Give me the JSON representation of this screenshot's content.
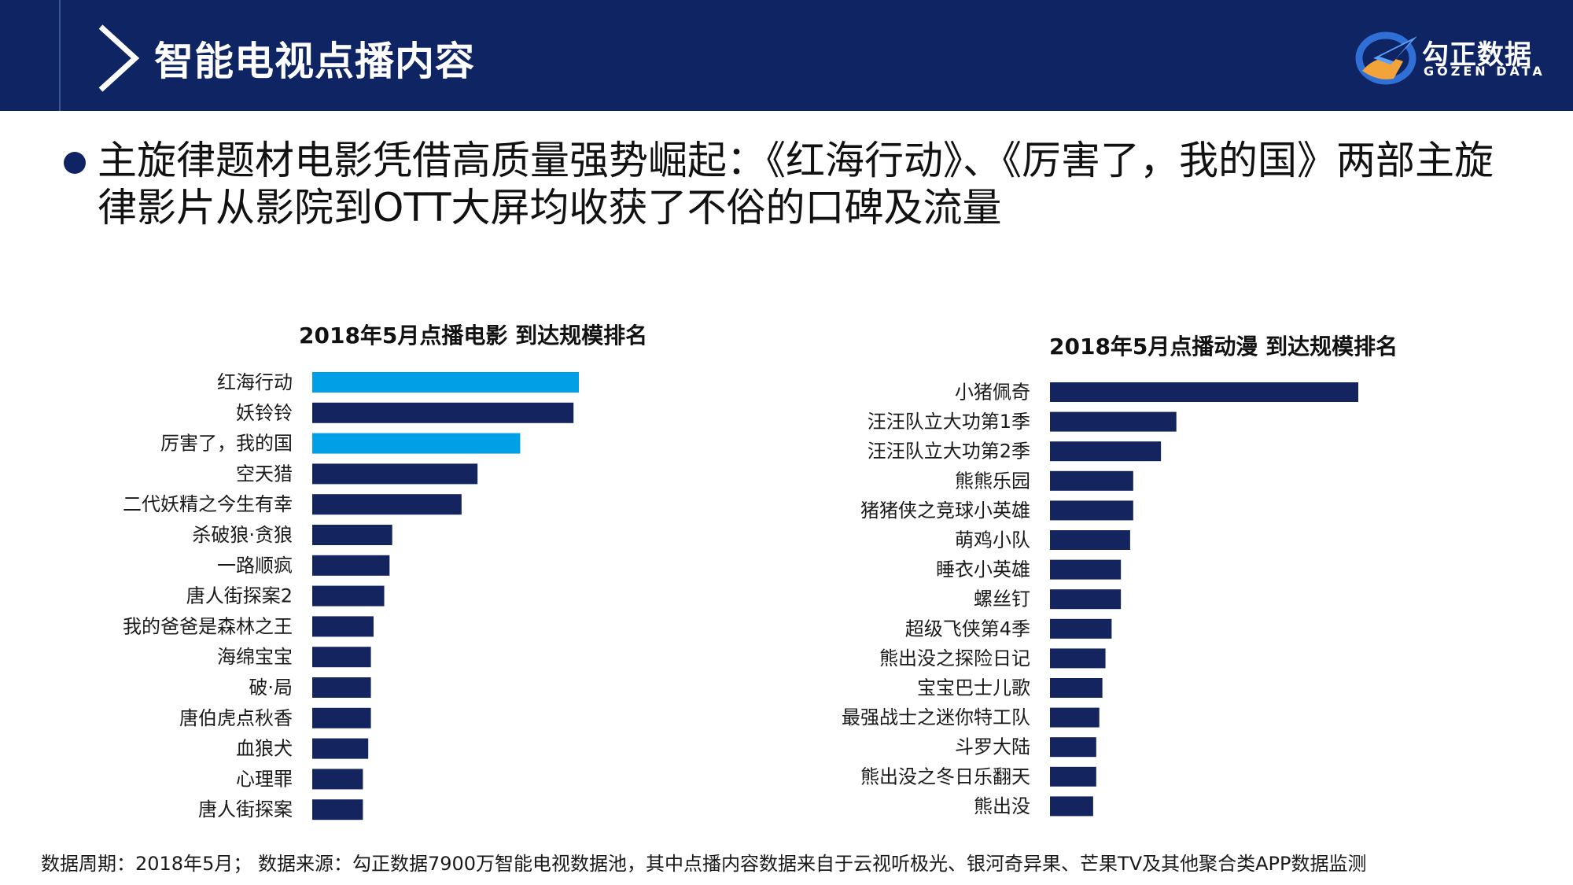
{
  "header": {
    "title": "智能电视点播内容",
    "logo_cn": "勾正数据",
    "logo_en": "GOZEN DATA"
  },
  "headline": "主旋律题材电影凭借高质量强势崛起：《红海行动》、《厉害了，我的国》两部主旋律影片从影院到OTT大屏均收获了不俗的口碑及流量",
  "colors": {
    "navy": "#13245e",
    "highlight": "#00a0e6",
    "header_bg": "#0e2463"
  },
  "chart_data": [
    {
      "type": "bar",
      "orientation": "horizontal",
      "title": "2018年5月点播电影 到达规模排名",
      "categories": [
        "红海行动",
        "妖铃铃",
        "厉害了，我的国",
        "空天猎",
        "二代妖精之今生有幸",
        "杀破狼·贪狼",
        "一路顺疯",
        "唐人街探案2",
        "我的爸爸是森林之王",
        "海绵宝宝",
        "破·局",
        "唐伯虎点秋香",
        "血狼犬",
        "心理罪",
        "唐人街探案"
      ],
      "values": [
        100,
        98,
        78,
        62,
        56,
        30,
        29,
        27,
        23,
        22,
        22,
        22,
        21,
        19,
        19
      ],
      "highlighted": [
        true,
        false,
        true,
        false,
        false,
        false,
        false,
        false,
        false,
        false,
        false,
        false,
        false,
        false,
        false
      ],
      "xlim": [
        0,
        100
      ],
      "unit": "relative"
    },
    {
      "type": "bar",
      "orientation": "horizontal",
      "title": "2018年5月点播动漫 到达规模排名",
      "categories": [
        "小猪佩奇",
        "汪汪队立大功第1季",
        "汪汪队立大功第2季",
        "熊熊乐园",
        "猪猪侠之竞球小英雄",
        "萌鸡小队",
        "睡衣小英雄",
        "螺丝钉",
        "超级飞侠第4季",
        "熊出没之探险日记",
        "宝宝巴士儿歌",
        "最强战士之迷你特工队",
        "斗罗大陆",
        "熊出没之冬日乐翻天",
        "熊出没"
      ],
      "values": [
        100,
        41,
        36,
        27,
        27,
        26,
        23,
        23,
        20,
        18,
        17,
        16,
        15,
        15,
        14
      ],
      "highlighted": [
        false,
        false,
        false,
        false,
        false,
        false,
        false,
        false,
        false,
        false,
        false,
        false,
        false,
        false,
        false
      ],
      "xlim": [
        0,
        100
      ],
      "unit": "relative"
    }
  ],
  "footnote": "数据周期：2018年5月； 数据来源：勾正数据7900万智能电视数据池，其中点播内容数据来自于云视听极光、银河奇异果、芒果TV及其他聚合类APP数据监测"
}
